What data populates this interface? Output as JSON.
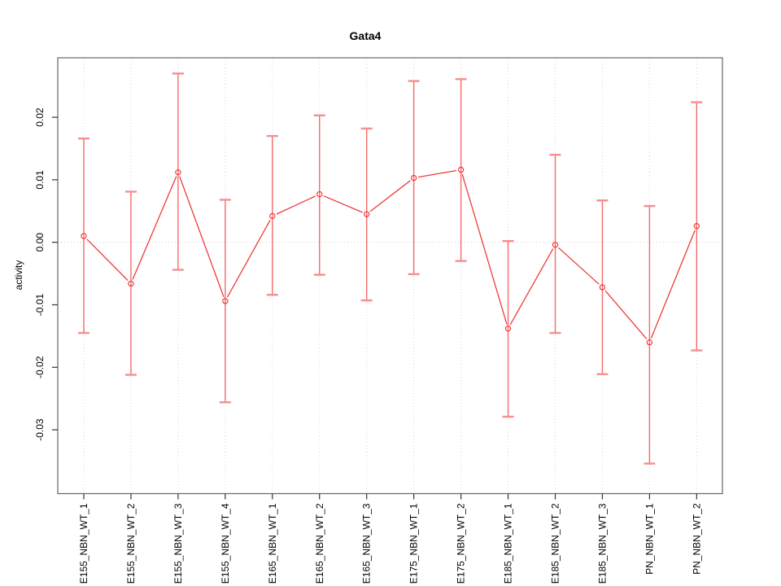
{
  "window": {
    "background_color": "#ffffff"
  },
  "chart_data": {
    "type": "line",
    "subtype": "points-with-error-bars",
    "title": "Gata4",
    "xlabel": "",
    "ylabel": "activity",
    "categories": [
      "E155_NBN_WT_1",
      "E155_NBN_WT_2",
      "E155_NBN_WT_3",
      "E155_NBN_WT_4",
      "E165_NBN_WT_1",
      "E165_NBN_WT_2",
      "E165_NBN_WT_3",
      "E175_NBN_WT_1",
      "E175_NBN_WT_2",
      "E185_NBN_WT_1",
      "E185_NBN_WT_2",
      "E185_NBN_WT_3",
      "PN_NBN_WT_1",
      "PN_NBN_WT_2"
    ],
    "series": [
      {
        "name": "activity",
        "values": [
          0.001,
          -0.0066,
          0.0112,
          -0.0094,
          0.0042,
          0.0077,
          0.0045,
          0.0103,
          0.0116,
          -0.0138,
          -0.0004,
          -0.0072,
          -0.016,
          0.0026
        ],
        "err_high": [
          0.0166,
          0.0081,
          0.027,
          0.0068,
          0.017,
          0.0203,
          0.0182,
          0.0258,
          0.0261,
          0.0002,
          0.014,
          0.0067,
          0.0058,
          0.0224
        ],
        "err_low": [
          -0.0145,
          -0.0212,
          -0.0044,
          -0.0256,
          -0.0084,
          -0.0052,
          -0.0093,
          -0.0051,
          -0.003,
          -0.0279,
          -0.0145,
          -0.0211,
          -0.0354,
          -0.0173
        ]
      }
    ],
    "ytick_labels": [
      "0.02",
      "0.01",
      "0.00",
      "-0.01",
      "-0.02",
      "-0.03"
    ],
    "ytick_values": [
      0.02,
      0.01,
      0.0,
      -0.01,
      -0.02,
      -0.03
    ],
    "ylim": [
      -0.0402,
      0.0296
    ],
    "grid": {
      "vertical_dotted_at_each_category": true,
      "horizontal_dotted_at_zero": true,
      "legend": "none"
    },
    "point_style": "open-circle",
    "line_style": "segments-broken-at-points",
    "colors": {
      "series_line": "#ef3b3b",
      "point_stroke": "#ef3b3b",
      "error_bar": "#f66a6a",
      "error_cap": "#f58f8f",
      "grid_line": "#d8d8d8",
      "zero_line": "#cfcfcf",
      "axis_box": "#666666",
      "tick": "#333333",
      "text": "#000000"
    }
  }
}
